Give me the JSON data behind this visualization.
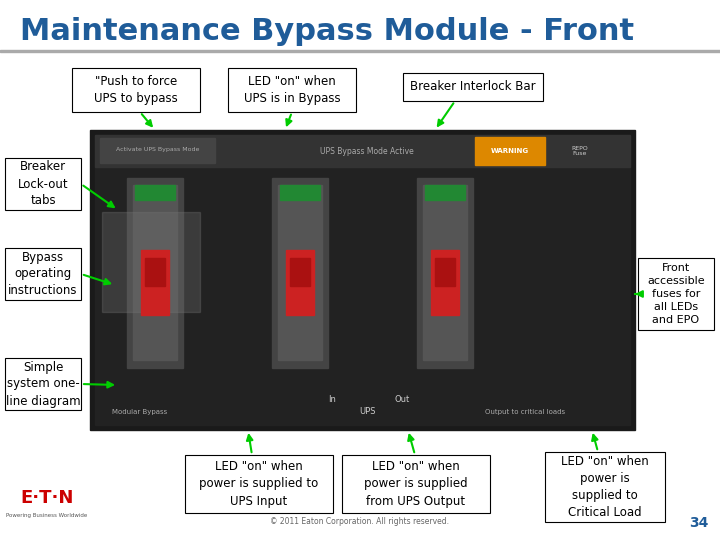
{
  "title": "Maintenance Bypass Module - Front",
  "title_color": "#1F5C99",
  "title_fontsize": 22,
  "bg_color": "#FFFFFF",
  "arrow_color": "#00CC00",
  "box_edge_color": "#000000",
  "panel_color": "#1a1a1a",
  "label_fontsize": 9,
  "labels": {
    "push_to_force": "\"Push to force\nUPS to bypass",
    "led_bypass": "LED \"on\" when\nUPS is in Bypass",
    "breaker_interlock": "Breaker Interlock Bar",
    "breaker_lockout": "Breaker\nLock-out\ntabs",
    "bypass_operating": "Bypass\noperating\ninstructions",
    "simple_system": "Simple\nsystem one-\nline diagram",
    "front_accessible": "Front\naccessible\nfuses for\nall LEDs\nand EPO",
    "led_ups_input": "LED \"on\" when\npower is supplied to\nUPS Input",
    "led_ups_output": "LED \"on\" when\npower is supplied\nfrom UPS Output",
    "led_critical": "LED \"on\" when\npower is\nsupplied to\nCritical Load",
    "copyright": "© 2011 Eaton Corporation. All rights reserved.",
    "page_num": "34"
  }
}
